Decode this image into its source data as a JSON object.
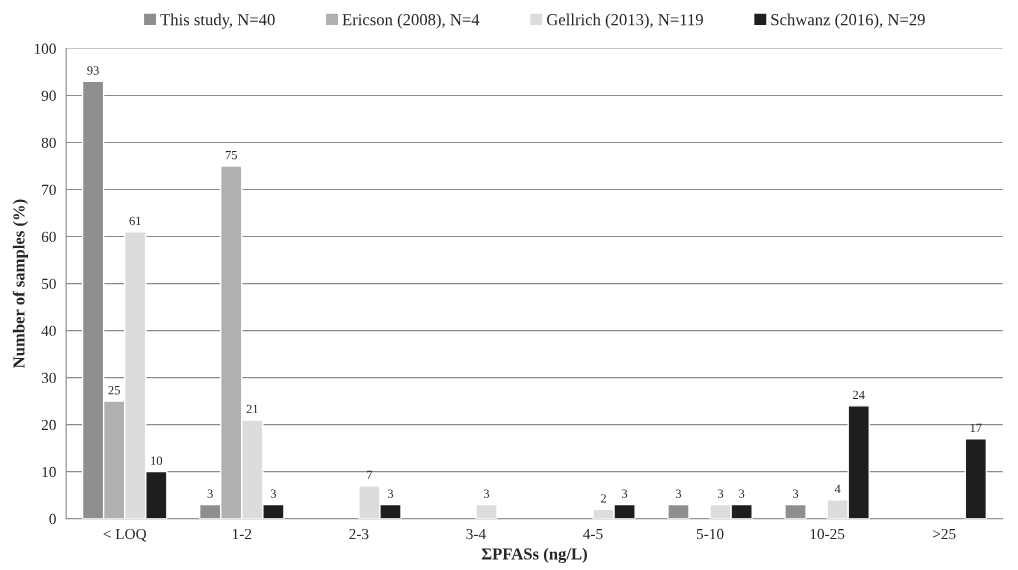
{
  "chart_data": {
    "type": "bar",
    "xlabel": "ΣPFASs (ng/L)",
    "ylabel": "Number of samples (%)",
    "categories": [
      "< LOQ",
      "1-2",
      "2-3",
      "3-4",
      "4-5",
      "5-10",
      "10-25",
      ">25"
    ],
    "series": [
      {
        "name": "This study, N=40",
        "color": "#8e8e91",
        "values": [
          93,
          3,
          null,
          null,
          null,
          3,
          3,
          null
        ]
      },
      {
        "name": "Ericson (2008), N=4",
        "color": "#b0b0b3",
        "values": [
          25,
          75,
          null,
          null,
          null,
          null,
          null,
          null
        ]
      },
      {
        "name": "Gellrich (2013), N=119",
        "color": "#dcdcde",
        "values": [
          61,
          21,
          7,
          3,
          2,
          3,
          4,
          null
        ]
      },
      {
        "name": "Schwanz (2016), N=29",
        "color": "#1e1e1e",
        "values": [
          10,
          3,
          3,
          null,
          3,
          3,
          24,
          17
        ]
      }
    ],
    "ylim": [
      0,
      100
    ],
    "yticks": [
      0,
      10,
      20,
      30,
      40,
      50,
      60,
      70,
      80,
      90,
      100
    ],
    "grid": "y",
    "legend": "top",
    "data_labels": true
  }
}
